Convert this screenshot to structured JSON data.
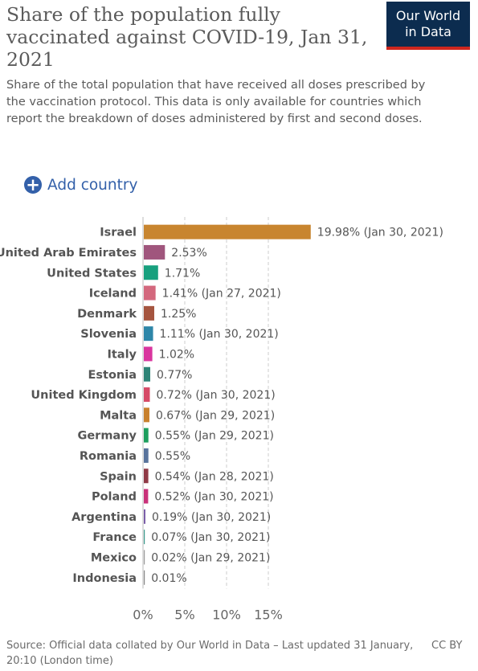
{
  "header": {
    "title": "Share of the population fully vaccinated against COVID-19, Jan 31, 2021",
    "subtitle": "Share of the total population that have received all doses prescribed by the vaccination protocol. This data is only available for countries which report the breakdown of doses administered by first and second doses.",
    "logo_line1": "Our World",
    "logo_line2": "in Data",
    "logo_colors": {
      "background": "#0c2c4f",
      "accent": "#ce261e"
    }
  },
  "controls": {
    "add_country_label": "Add country",
    "add_country_icon": "plus-circle-icon"
  },
  "chart_data": {
    "type": "bar",
    "orientation": "horizontal",
    "xlim": [
      0,
      20
    ],
    "x_ticks": [
      "0%",
      "5%",
      "10%",
      "15%"
    ],
    "x_tick_values": [
      0,
      5,
      10,
      15
    ],
    "grid": "vertical dashed",
    "categories": [
      "Israel",
      "United Arab Emirates",
      "United States",
      "Iceland",
      "Denmark",
      "Slovenia",
      "Italy",
      "Estonia",
      "United Kingdom",
      "Malta",
      "Germany",
      "Romania",
      "Spain",
      "Poland",
      "Argentina",
      "France",
      "Mexico",
      "Indonesia"
    ],
    "values": [
      19.98,
      2.53,
      1.71,
      1.41,
      1.25,
      1.11,
      1.02,
      0.77,
      0.72,
      0.67,
      0.55,
      0.55,
      0.54,
      0.52,
      0.19,
      0.07,
      0.02,
      0.01
    ],
    "value_labels": [
      "19.98% (Jan 30, 2021)",
      "2.53%",
      "1.71%",
      "1.41% (Jan 27, 2021)",
      "1.25%",
      "1.11% (Jan 30, 2021)",
      "1.02%",
      "0.77%",
      "0.72% (Jan 30, 2021)",
      "0.67% (Jan 29, 2021)",
      "0.55% (Jan 29, 2021)",
      "0.55%",
      "0.54% (Jan 28, 2021)",
      "0.52% (Jan 30, 2021)",
      "0.19% (Jan 30, 2021)",
      "0.07% (Jan 30, 2021)",
      "0.02% (Jan 29, 2021)",
      "0.01%"
    ],
    "colors": [
      "#c8852f",
      "#a0567d",
      "#18a07e",
      "#d3687d",
      "#a5553f",
      "#2e86a8",
      "#d9359e",
      "#2e8376",
      "#d64a67",
      "#c8802d",
      "#1d9e5d",
      "#58739c",
      "#8f3a46",
      "#c9317a",
      "#7a5ca8",
      "#3a9a8c",
      "#9b9b9b",
      "#888888"
    ]
  },
  "footer": {
    "source": "Source: Official data collated by Our World in Data – Last updated 31 January, 20:10 (London time)",
    "license": "CC BY"
  }
}
